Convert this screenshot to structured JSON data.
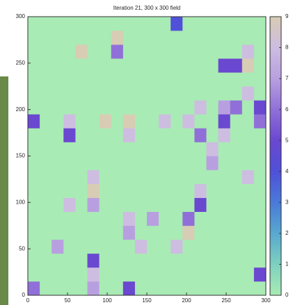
{
  "chart_data": {
    "type": "heatmap",
    "title": "Iteration 21, 300 x 300 field",
    "xlim": [
      0,
      300
    ],
    "ylim": [
      0,
      300
    ],
    "xticks": [
      0,
      50,
      100,
      150,
      200,
      250,
      300
    ],
    "yticks": [
      0,
      50,
      100,
      150,
      200,
      250,
      300
    ],
    "cblim": [
      0,
      9
    ],
    "cbticks": [
      0,
      1,
      2,
      3,
      4,
      5,
      6,
      7,
      8,
      9
    ],
    "palette": [
      "#a8ebb4",
      "#7fd0c0",
      "#58a8d0",
      "#4a7ad8",
      "#5050d8",
      "#6a48d0",
      "#9070d8",
      "#b8a0e0",
      "#cdbde0",
      "#d8ccb4"
    ],
    "z": [
      [
        6,
        0,
        0,
        0,
        0,
        7,
        0,
        0,
        5,
        0,
        0,
        0,
        0,
        0,
        0,
        0,
        0,
        0,
        0,
        0
      ],
      [
        0,
        0,
        0,
        0,
        0,
        8,
        0,
        0,
        0,
        0,
        0,
        0,
        0,
        0,
        0,
        0,
        0,
        0,
        0,
        5
      ],
      [
        0,
        0,
        0,
        0,
        0,
        5,
        0,
        0,
        0,
        0,
        0,
        0,
        0,
        0,
        0,
        0,
        0,
        0,
        0,
        0
      ],
      [
        0,
        0,
        7,
        0,
        0,
        0,
        0,
        0,
        0,
        8,
        0,
        0,
        8,
        0,
        0,
        0,
        0,
        0,
        0,
        0
      ],
      [
        0,
        0,
        0,
        0,
        0,
        0,
        0,
        0,
        7,
        0,
        0,
        0,
        0,
        9,
        0,
        0,
        0,
        0,
        0,
        0
      ],
      [
        0,
        0,
        0,
        0,
        0,
        0,
        0,
        0,
        8,
        0,
        7,
        0,
        0,
        6,
        0,
        0,
        0,
        0,
        0,
        0
      ],
      [
        0,
        0,
        0,
        8,
        0,
        7,
        0,
        0,
        0,
        0,
        0,
        0,
        0,
        0,
        5,
        0,
        0,
        0,
        0,
        0
      ],
      [
        0,
        0,
        0,
        0,
        0,
        9,
        0,
        0,
        0,
        0,
        0,
        0,
        0,
        0,
        8,
        0,
        0,
        0,
        0,
        0
      ],
      [
        0,
        0,
        0,
        0,
        0,
        8,
        0,
        0,
        0,
        0,
        0,
        0,
        0,
        0,
        0,
        0,
        0,
        0,
        8,
        0
      ],
      [
        0,
        0,
        0,
        0,
        0,
        0,
        0,
        0,
        0,
        0,
        0,
        0,
        0,
        0,
        0,
        7,
        0,
        0,
        0,
        0
      ],
      [
        0,
        0,
        0,
        0,
        0,
        0,
        0,
        0,
        0,
        0,
        0,
        0,
        0,
        0,
        0,
        8,
        0,
        0,
        0,
        0
      ],
      [
        0,
        0,
        0,
        5,
        0,
        0,
        0,
        0,
        8,
        0,
        0,
        0,
        0,
        0,
        6,
        0,
        8,
        0,
        0,
        0
      ],
      [
        5,
        0,
        0,
        8,
        0,
        0,
        9,
        0,
        9,
        0,
        0,
        8,
        0,
        8,
        0,
        0,
        5,
        0,
        0,
        6
      ],
      [
        0,
        0,
        0,
        0,
        0,
        0,
        0,
        0,
        0,
        0,
        0,
        0,
        0,
        0,
        8,
        0,
        7,
        6,
        0,
        5
      ],
      [
        0,
        0,
        0,
        0,
        0,
        0,
        0,
        0,
        0,
        0,
        0,
        0,
        0,
        0,
        0,
        0,
        0,
        0,
        8,
        0
      ],
      [
        0,
        0,
        0,
        0,
        0,
        0,
        0,
        0,
        0,
        0,
        0,
        0,
        0,
        0,
        0,
        0,
        0,
        0,
        0,
        0
      ],
      [
        0,
        0,
        0,
        0,
        0,
        0,
        0,
        0,
        0,
        0,
        0,
        0,
        0,
        0,
        0,
        0,
        5,
        5,
        9,
        0
      ],
      [
        0,
        0,
        0,
        0,
        9,
        0,
        0,
        6,
        0,
        0,
        0,
        0,
        0,
        0,
        0,
        0,
        0,
        0,
        8,
        0
      ],
      [
        0,
        0,
        0,
        0,
        0,
        0,
        0,
        9,
        0,
        0,
        0,
        0,
        0,
        0,
        0,
        0,
        0,
        0,
        0,
        0
      ],
      [
        0,
        0,
        0,
        0,
        0,
        0,
        0,
        0,
        0,
        0,
        0,
        0,
        4,
        0,
        0,
        0,
        0,
        0,
        0,
        0
      ]
    ]
  }
}
